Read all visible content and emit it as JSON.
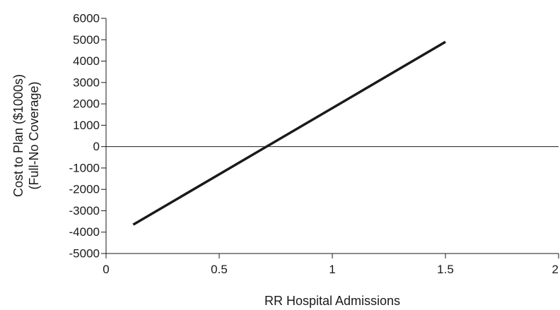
{
  "chart_data": {
    "type": "line",
    "title": "",
    "xlabel": "RR Hospital Admissions",
    "ylabel_lines": [
      "Cost to Plan ($1000s)",
      "(Full-No Coverage)"
    ],
    "xlim": [
      0,
      2
    ],
    "ylim": [
      -5000,
      6000
    ],
    "x_ticks": [
      0,
      0.5,
      1,
      1.5,
      2
    ],
    "x_tick_labels": [
      "0",
      "0.5",
      "1",
      "1.5",
      "2"
    ],
    "y_ticks": [
      -5000,
      -4000,
      -3000,
      -2000,
      -1000,
      0,
      1000,
      2000,
      3000,
      4000,
      5000,
      6000
    ],
    "y_tick_labels": [
      "-5000",
      "-4000",
      "-3000",
      "-2000",
      "-1000",
      "0",
      "1000",
      "2000",
      "3000",
      "4000",
      "5000",
      "6000"
    ],
    "zero_line": true,
    "grid": false,
    "series": [
      {
        "x": [
          0.12,
          1.5
        ],
        "y": [
          -3650,
          4900
        ],
        "color": "#1a1a1a"
      }
    ]
  }
}
